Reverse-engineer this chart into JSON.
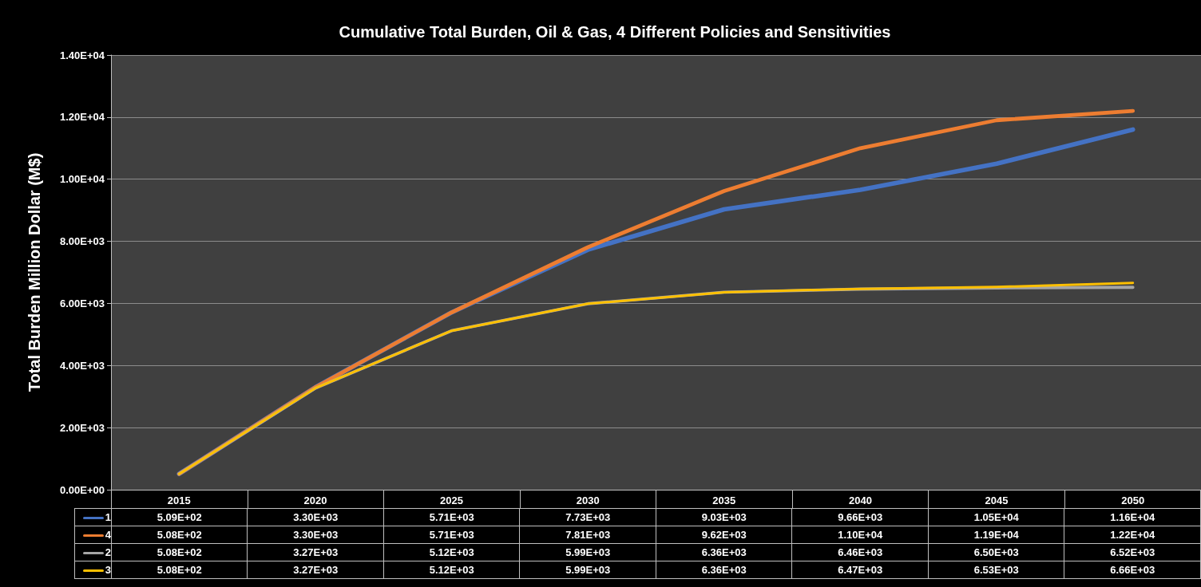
{
  "chart_data": {
    "type": "line",
    "title": "Cumulative Total Burden, Oil & Gas, 4 Different Policies and Sensitivities",
    "ylabel": "Total Burden Million Dollar (M$)",
    "categories": [
      "2015",
      "2020",
      "2025",
      "2030",
      "2035",
      "2040",
      "2045",
      "2050"
    ],
    "series": [
      {
        "name": "1",
        "color": "#4472c4",
        "values": [
          509,
          3300,
          5710,
          7730,
          9030,
          9660,
          10500,
          11600
        ],
        "value_labels": [
          "5.09E+02",
          "3.30E+03",
          "5.71E+03",
          "7.73E+03",
          "9.03E+03",
          "9.66E+03",
          "1.05E+04",
          "1.16E+04"
        ]
      },
      {
        "name": "4",
        "color": "#ed7d31",
        "values": [
          508,
          3300,
          5710,
          7810,
          9620,
          11000,
          11900,
          12200
        ],
        "value_labels": [
          "5.08E+02",
          "3.30E+03",
          "5.71E+03",
          "7.81E+03",
          "9.62E+03",
          "1.10E+04",
          "1.19E+04",
          "1.22E+04"
        ]
      },
      {
        "name": "2",
        "color": "#a5a5a5",
        "values": [
          508,
          3270,
          5120,
          5990,
          6360,
          6460,
          6500,
          6520
        ],
        "value_labels": [
          "5.08E+02",
          "3.27E+03",
          "5.12E+03",
          "5.99E+03",
          "6.36E+03",
          "6.46E+03",
          "6.50E+03",
          "6.52E+03"
        ]
      },
      {
        "name": "3",
        "color": "#ffc000",
        "values": [
          508,
          3270,
          5120,
          5990,
          6360,
          6470,
          6530,
          6660
        ],
        "value_labels": [
          "5.08E+02",
          "3.27E+03",
          "5.12E+03",
          "5.99E+03",
          "6.36E+03",
          "6.47E+03",
          "6.53E+03",
          "6.66E+03"
        ]
      }
    ],
    "ylim": [
      0,
      14000
    ],
    "yticks": [
      {
        "value": 0,
        "label": "0.00E+00"
      },
      {
        "value": 2000,
        "label": "2.00E+03"
      },
      {
        "value": 4000,
        "label": "4.00E+03"
      },
      {
        "value": 6000,
        "label": "6.00E+03"
      },
      {
        "value": 8000,
        "label": "8.00E+03"
      },
      {
        "value": 10000,
        "label": "1.00E+04"
      },
      {
        "value": 12000,
        "label": "1.20E+04"
      },
      {
        "value": 14000,
        "label": "1.40E+04"
      }
    ],
    "grid": "y",
    "legend": "bottom",
    "marker": "none",
    "line_style": "solid"
  }
}
